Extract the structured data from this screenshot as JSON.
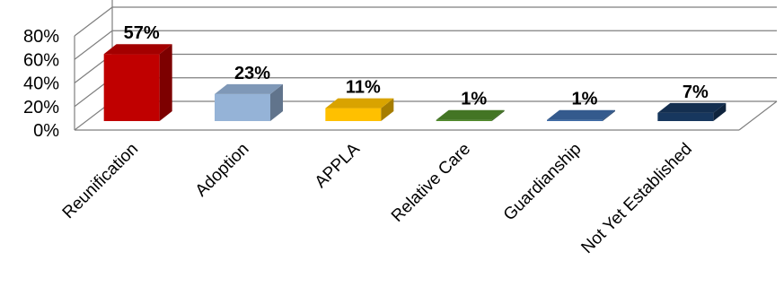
{
  "chart_data": {
    "type": "bar",
    "title": "",
    "xlabel": "",
    "ylabel": "",
    "categories": [
      "Reunification",
      "Adoption",
      "APPLA",
      "Relative Care",
      "Guardianship",
      "Not Yet Established"
    ],
    "values": [
      57,
      23,
      11,
      1,
      1,
      7
    ],
    "data_labels": [
      "57%",
      "23%",
      "11%",
      "1%",
      "1%",
      "7%"
    ],
    "y_ticks": [
      "0%",
      "20%",
      "40%",
      "60%",
      "80%"
    ],
    "ylim": [
      0,
      80
    ],
    "grid": true,
    "legend": "none",
    "three_d": true,
    "colors": [
      "#c00000",
      "#95b3d7",
      "#ffc000",
      "#4f8a2a",
      "#3d6aa6",
      "#17375e"
    ]
  }
}
